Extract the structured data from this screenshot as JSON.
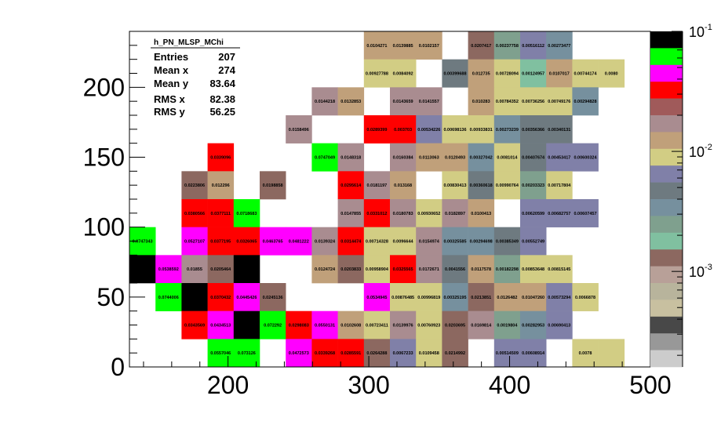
{
  "chart_data": {
    "type": "heatmap",
    "title": "",
    "xlabel": "",
    "ylabel": "",
    "xlim": [
      130,
      500
    ],
    "ylim": [
      0,
      240
    ],
    "bin_width_x": 18.5,
    "bin_width_y": 20,
    "x_ticks": [
      "200",
      "300",
      "400",
      "500"
    ],
    "y_ticks": [
      "0",
      "50",
      "100",
      "150",
      "200"
    ],
    "x_tick_values": [
      200,
      300,
      400,
      500
    ],
    "y_tick_values": [
      0,
      50,
      100,
      150,
      200
    ],
    "z_scale": "log",
    "z_ticks": [
      {
        "base": "10",
        "exp": "-1",
        "value": 0.1
      },
      {
        "base": "10",
        "exp": "-2",
        "value": 0.01
      },
      {
        "base": "10",
        "exp": "-3",
        "value": 0.001
      }
    ],
    "palette": [
      "#000000",
      "#00ff00",
      "#ff00ff",
      "#ff0000",
      "#a05a5a",
      "#a98c90",
      "#c0a07a",
      "#d2cd84",
      "#8080a8",
      "#6e7a80",
      "#76909e",
      "#7fa08e",
      "#80c0a0",
      "#8c6860",
      "#b8a098",
      "#b8b49c",
      "#c8c0a0",
      "#484848",
      "#989898",
      "#cccccc"
    ],
    "stats": {
      "title": "h_PN_MLSP_MChi",
      "rows": [
        {
          "label": "Entries",
          "value": "207"
        },
        {
          "label": "Mean x",
          "value": "274"
        },
        {
          "label": "Mean y",
          "value": "83.64"
        },
        {
          "label": "RMS x",
          "value": "82.38"
        },
        {
          "label": "RMS y",
          "value": "56.25"
        }
      ]
    },
    "cells": [
      {
        "ix": 9,
        "iy": 11,
        "value": "0.0104271",
        "color": "#c0a07a"
      },
      {
        "ix": 10,
        "iy": 11,
        "value": "0.0139885",
        "color": "#c0a07a"
      },
      {
        "ix": 11,
        "iy": 11,
        "value": "0.0102157",
        "color": "#c0a07a"
      },
      {
        "ix": 13,
        "iy": 11,
        "value": "0.0207417",
        "color": "#8c6860"
      },
      {
        "ix": 14,
        "iy": 11,
        "value": "0.00237758",
        "color": "#7fa08e"
      },
      {
        "ix": 15,
        "iy": 11,
        "value": "0.00516112",
        "color": "#8080a8"
      },
      {
        "ix": 16,
        "iy": 11,
        "value": "0.00273477",
        "color": "#76909e"
      },
      {
        "ix": 9,
        "iy": 10,
        "value": "0.00927788",
        "color": "#d2cd84"
      },
      {
        "ix": 10,
        "iy": 10,
        "value": "0.0084092",
        "color": "#d2cd84"
      },
      {
        "ix": 12,
        "iy": 10,
        "value": "0.00399688",
        "color": "#6e7a80"
      },
      {
        "ix": 13,
        "iy": 10,
        "value": "0.012735",
        "color": "#c0a07a"
      },
      {
        "ix": 14,
        "iy": 10,
        "value": "0.00728094",
        "color": "#d2cd84"
      },
      {
        "ix": 15,
        "iy": 10,
        "value": "0.00124957",
        "color": "#80c0a0"
      },
      {
        "ix": 16,
        "iy": 10,
        "value": "0.0107017",
        "color": "#c0a07a"
      },
      {
        "ix": 17,
        "iy": 10,
        "value": "0.00744174",
        "color": "#d2cd84"
      },
      {
        "ix": 18,
        "iy": 10,
        "value": "0.0080",
        "color": "#d2cd84"
      },
      {
        "ix": 7,
        "iy": 9,
        "value": "0.0144218",
        "color": "#a98c90"
      },
      {
        "ix": 8,
        "iy": 9,
        "value": "0.0132853",
        "color": "#c0a07a"
      },
      {
        "ix": 10,
        "iy": 9,
        "value": "0.0143659",
        "color": "#a98c90"
      },
      {
        "ix": 11,
        "iy": 9,
        "value": "0.0141557",
        "color": "#a98c90"
      },
      {
        "ix": 13,
        "iy": 9,
        "value": "0.010283",
        "color": "#c0a07a"
      },
      {
        "ix": 14,
        "iy": 9,
        "value": "0.00784352",
        "color": "#d2cd84"
      },
      {
        "ix": 15,
        "iy": 9,
        "value": "0.00736256",
        "color": "#d2cd84"
      },
      {
        "ix": 16,
        "iy": 9,
        "value": "0.00749176",
        "color": "#d2cd84"
      },
      {
        "ix": 17,
        "iy": 9,
        "value": "0.00294828",
        "color": "#76909e"
      },
      {
        "ix": 6,
        "iy": 8,
        "value": "0.0158496",
        "color": "#a98c90"
      },
      {
        "ix": 9,
        "iy": 8,
        "value": "0.0289399",
        "color": "#ff0000"
      },
      {
        "ix": 10,
        "iy": 8,
        "value": "0.003703",
        "color": "#ff0000"
      },
      {
        "ix": 11,
        "iy": 8,
        "value": "0.00534226",
        "color": "#8080a8"
      },
      {
        "ix": 12,
        "iy": 8,
        "value": "0.00698136",
        "color": "#d2cd84"
      },
      {
        "ix": 13,
        "iy": 8,
        "value": "0.00933831",
        "color": "#d2cd84"
      },
      {
        "ix": 14,
        "iy": 8,
        "value": "0.00273239",
        "color": "#76909e"
      },
      {
        "ix": 15,
        "iy": 8,
        "value": "0.00356366",
        "color": "#6e7a80"
      },
      {
        "ix": 16,
        "iy": 8,
        "value": "0.00340131",
        "color": "#6e7a80"
      },
      {
        "ix": 3,
        "iy": 7,
        "value": "0.0339096",
        "color": "#ff0000"
      },
      {
        "ix": 7,
        "iy": 7,
        "value": "0.0747049",
        "color": "#00ff00"
      },
      {
        "ix": 8,
        "iy": 7,
        "value": "0.0148318",
        "color": "#a98c90"
      },
      {
        "ix": 10,
        "iy": 7,
        "value": "0.0160384",
        "color": "#a98c90"
      },
      {
        "ix": 11,
        "iy": 7,
        "value": "0.0113063",
        "color": "#c0a07a"
      },
      {
        "ix": 12,
        "iy": 7,
        "value": "0.0120493",
        "color": "#c0a07a"
      },
      {
        "ix": 13,
        "iy": 7,
        "value": "0.00327042",
        "color": "#76909e"
      },
      {
        "ix": 14,
        "iy": 7,
        "value": "0.0081014",
        "color": "#d2cd84"
      },
      {
        "ix": 15,
        "iy": 7,
        "value": "0.00407674",
        "color": "#6e7a80"
      },
      {
        "ix": 16,
        "iy": 7,
        "value": "0.00453417",
        "color": "#8080a8"
      },
      {
        "ix": 17,
        "iy": 7,
        "value": "0.00600324",
        "color": "#8080a8"
      },
      {
        "ix": 2,
        "iy": 6,
        "value": "0.0223806",
        "color": "#8c6860"
      },
      {
        "ix": 3,
        "iy": 6,
        "value": "0.012296",
        "color": "#c0a07a"
      },
      {
        "ix": 5,
        "iy": 6,
        "value": "0.0198858",
        "color": "#8c6860"
      },
      {
        "ix": 8,
        "iy": 6,
        "value": "0.0295614",
        "color": "#ff0000"
      },
      {
        "ix": 9,
        "iy": 6,
        "value": "0.0181197",
        "color": "#a98c90"
      },
      {
        "ix": 10,
        "iy": 6,
        "value": "0.013168",
        "color": "#c0a07a"
      },
      {
        "ix": 12,
        "iy": 6,
        "value": "0.00830413",
        "color": "#d2cd84"
      },
      {
        "ix": 13,
        "iy": 6,
        "value": "0.00360618",
        "color": "#6e7a80"
      },
      {
        "ix": 14,
        "iy": 6,
        "value": "0.00990764",
        "color": "#d2cd84"
      },
      {
        "ix": 15,
        "iy": 6,
        "value": "0.00203323",
        "color": "#7fa08e"
      },
      {
        "ix": 16,
        "iy": 6,
        "value": "0.00717804",
        "color": "#d2cd84"
      },
      {
        "ix": 2,
        "iy": 5,
        "value": "0.0380566",
        "color": "#ff0000"
      },
      {
        "ix": 3,
        "iy": 5,
        "value": "0.0377111",
        "color": "#ff0000"
      },
      {
        "ix": 4,
        "iy": 5,
        "value": "0.0718683",
        "color": "#00ff00"
      },
      {
        "ix": 8,
        "iy": 5,
        "value": "0.0147855",
        "color": "#a98c90"
      },
      {
        "ix": 9,
        "iy": 5,
        "value": "0.0331012",
        "color": "#ff0000"
      },
      {
        "ix": 10,
        "iy": 5,
        "value": "0.0180783",
        "color": "#a98c90"
      },
      {
        "ix": 11,
        "iy": 5,
        "value": "0.00930652",
        "color": "#d2cd84"
      },
      {
        "ix": 12,
        "iy": 5,
        "value": "0.0182897",
        "color": "#a98c90"
      },
      {
        "ix": 13,
        "iy": 5,
        "value": "0.0100413",
        "color": "#c0a07a"
      },
      {
        "ix": 15,
        "iy": 5,
        "value": "0.00620599",
        "color": "#8080a8"
      },
      {
        "ix": 16,
        "iy": 5,
        "value": "0.00682757",
        "color": "#8080a8"
      },
      {
        "ix": 17,
        "iy": 5,
        "value": "0.00607457",
        "color": "#8080a8"
      },
      {
        "ix": 0,
        "iy": 4,
        "value": "0.0747343",
        "color": "#00ff00"
      },
      {
        "ix": 2,
        "iy": 4,
        "value": "0.0527107",
        "color": "#ff00ff"
      },
      {
        "ix": 3,
        "iy": 4,
        "value": "0.0377195",
        "color": "#ff0000"
      },
      {
        "ix": 4,
        "iy": 4,
        "value": "0.0326065",
        "color": "#ff0000"
      },
      {
        "ix": 5,
        "iy": 4,
        "value": "0.0463765",
        "color": "#ff00ff"
      },
      {
        "ix": 6,
        "iy": 4,
        "value": "0.0481222",
        "color": "#ff00ff"
      },
      {
        "ix": 7,
        "iy": 4,
        "value": "0.0139324",
        "color": "#a98c90"
      },
      {
        "ix": 8,
        "iy": 4,
        "value": "0.0314474",
        "color": "#ff0000"
      },
      {
        "ix": 9,
        "iy": 4,
        "value": "0.00714328",
        "color": "#d2cd84"
      },
      {
        "ix": 10,
        "iy": 4,
        "value": "0.0096644",
        "color": "#d2cd84"
      },
      {
        "ix": 11,
        "iy": 4,
        "value": "0.0154974",
        "color": "#a98c90"
      },
      {
        "ix": 12,
        "iy": 4,
        "value": "0.00325585",
        "color": "#76909e"
      },
      {
        "ix": 13,
        "iy": 4,
        "value": "0.00294698",
        "color": "#76909e"
      },
      {
        "ix": 14,
        "iy": 4,
        "value": "0.00385349",
        "color": "#6e7a80"
      },
      {
        "ix": 15,
        "iy": 4,
        "value": "0.00552749",
        "color": "#8080a8"
      },
      {
        "ix": 0,
        "iy": 3,
        "value": "",
        "color": "#000000"
      },
      {
        "ix": 1,
        "iy": 3,
        "value": "0.0538592",
        "color": "#ff00ff"
      },
      {
        "ix": 2,
        "iy": 3,
        "value": "0.01855",
        "color": "#a98c90"
      },
      {
        "ix": 3,
        "iy": 3,
        "value": "0.0205464",
        "color": "#8c6860"
      },
      {
        "ix": 4,
        "iy": 3,
        "value": "",
        "color": "#000000"
      },
      {
        "ix": 7,
        "iy": 3,
        "value": "0.0124724",
        "color": "#c0a07a"
      },
      {
        "ix": 8,
        "iy": 3,
        "value": "0.0203833",
        "color": "#8c6860"
      },
      {
        "ix": 9,
        "iy": 3,
        "value": "0.00958904",
        "color": "#d2cd84"
      },
      {
        "ix": 10,
        "iy": 3,
        "value": "0.0325565",
        "color": "#ff0000"
      },
      {
        "ix": 11,
        "iy": 3,
        "value": "0.0172671",
        "color": "#a98c90"
      },
      {
        "ix": 12,
        "iy": 3,
        "value": "0.0041556",
        "color": "#6e7a80"
      },
      {
        "ix": 13,
        "iy": 3,
        "value": "0.0117578",
        "color": "#c0a07a"
      },
      {
        "ix": 14,
        "iy": 3,
        "value": "0.00182298",
        "color": "#7fa08e"
      },
      {
        "ix": 15,
        "iy": 3,
        "value": "0.00853648",
        "color": "#d2cd84"
      },
      {
        "ix": 16,
        "iy": 3,
        "value": "0.00815145",
        "color": "#d2cd84"
      },
      {
        "ix": 1,
        "iy": 2,
        "value": "0.0744006",
        "color": "#00ff00"
      },
      {
        "ix": 2,
        "iy": 2,
        "value": "",
        "color": "#000000"
      },
      {
        "ix": 3,
        "iy": 2,
        "value": "0.0370432",
        "color": "#ff0000"
      },
      {
        "ix": 4,
        "iy": 2,
        "value": "0.0445426",
        "color": "#ff00ff"
      },
      {
        "ix": 5,
        "iy": 2,
        "value": "0.0245136",
        "color": "#8c6860"
      },
      {
        "ix": 9,
        "iy": 2,
        "value": "0.0534945",
        "color": "#ff00ff"
      },
      {
        "ix": 10,
        "iy": 2,
        "value": "0.00876485",
        "color": "#d2cd84"
      },
      {
        "ix": 11,
        "iy": 2,
        "value": "0.00996819",
        "color": "#d2cd84"
      },
      {
        "ix": 12,
        "iy": 2,
        "value": "0.00325195",
        "color": "#76909e"
      },
      {
        "ix": 13,
        "iy": 2,
        "value": "0.0213851",
        "color": "#8c6860"
      },
      {
        "ix": 14,
        "iy": 2,
        "value": "0.0126482",
        "color": "#c0a07a"
      },
      {
        "ix": 15,
        "iy": 2,
        "value": "0.01047260",
        "color": "#c0a07a"
      },
      {
        "ix": 16,
        "iy": 2,
        "value": "0.00573294",
        "color": "#8080a8"
      },
      {
        "ix": 17,
        "iy": 2,
        "value": "0.0066878",
        "color": "#d2cd84"
      },
      {
        "ix": 2,
        "iy": 1,
        "value": "0.0343569",
        "color": "#ff0000"
      },
      {
        "ix": 3,
        "iy": 1,
        "value": "0.0434513",
        "color": "#ff00ff"
      },
      {
        "ix": 4,
        "iy": 1,
        "value": "",
        "color": "#000000"
      },
      {
        "ix": 5,
        "iy": 1,
        "value": "0.072292",
        "color": "#00ff00"
      },
      {
        "ix": 6,
        "iy": 1,
        "value": "0.0298083",
        "color": "#ff0000"
      },
      {
        "ix": 7,
        "iy": 1,
        "value": "0.0550131",
        "color": "#ff00ff"
      },
      {
        "ix": 8,
        "iy": 1,
        "value": "0.0102608",
        "color": "#c0a07a"
      },
      {
        "ix": 9,
        "iy": 1,
        "value": "0.00723411",
        "color": "#d2cd84"
      },
      {
        "ix": 10,
        "iy": 1,
        "value": "0.0139976",
        "color": "#a98c90"
      },
      {
        "ix": 11,
        "iy": 1,
        "value": "0.00760923",
        "color": "#d2cd84"
      },
      {
        "ix": 12,
        "iy": 1,
        "value": "0.0203695",
        "color": "#8c6860"
      },
      {
        "ix": 13,
        "iy": 1,
        "value": "0.0169814",
        "color": "#a98c90"
      },
      {
        "ix": 14,
        "iy": 1,
        "value": "0.0019804",
        "color": "#7fa08e"
      },
      {
        "ix": 15,
        "iy": 1,
        "value": "0.00282953",
        "color": "#76909e"
      },
      {
        "ix": 16,
        "iy": 1,
        "value": "0.00690413",
        "color": "#8080a8"
      },
      {
        "ix": 3,
        "iy": 0,
        "value": "0.0557046",
        "color": "#00ff00"
      },
      {
        "ix": 4,
        "iy": 0,
        "value": "0.073126",
        "color": "#00ff00"
      },
      {
        "ix": 6,
        "iy": 0,
        "value": "0.0472573",
        "color": "#ff00ff"
      },
      {
        "ix": 7,
        "iy": 0,
        "value": "0.0339268",
        "color": "#ff0000"
      },
      {
        "ix": 8,
        "iy": 0,
        "value": "0.0285591",
        "color": "#ff0000"
      },
      {
        "ix": 9,
        "iy": 0,
        "value": "0.0264288",
        "color": "#8c6860"
      },
      {
        "ix": 10,
        "iy": 0,
        "value": "0.0067233",
        "color": "#8080a8"
      },
      {
        "ix": 11,
        "iy": 0,
        "value": "0.0109458",
        "color": "#d2cd84"
      },
      {
        "ix": 12,
        "iy": 0,
        "value": "0.0214992",
        "color": "#8c6860"
      },
      {
        "ix": 14,
        "iy": 0,
        "value": "0.00514509",
        "color": "#8080a8"
      },
      {
        "ix": 15,
        "iy": 0,
        "value": "0.00608914",
        "color": "#8080a8"
      },
      {
        "ix": 17,
        "iy": 0,
        "value": "0.0078",
        "color": "#d2cd84"
      },
      {
        "ix": 18,
        "iy": 0,
        "value": "",
        "color": "#d2cd84"
      }
    ]
  }
}
